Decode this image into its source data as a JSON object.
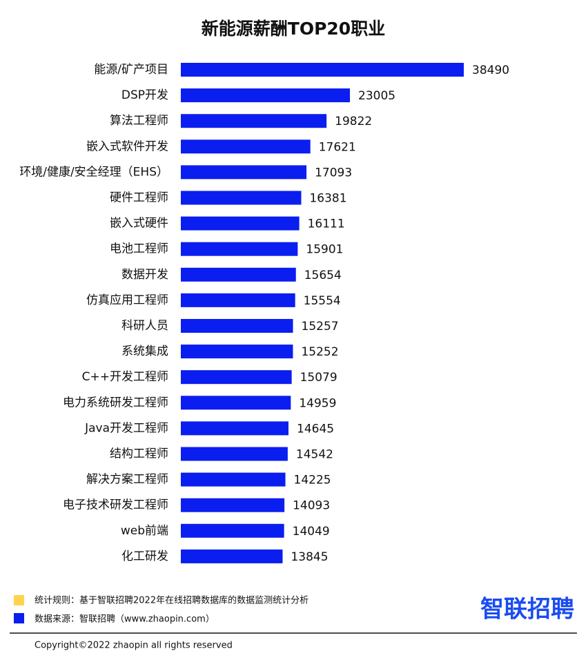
{
  "chart_data": {
    "type": "hbar",
    "title": "新能源薪酬TOP20职业",
    "categories": [
      "能源/矿产项目",
      "DSP开发",
      "算法工程师",
      "嵌入式软件开发",
      "环境/健康/安全经理（EHS）",
      "硬件工程师",
      "嵌入式硬件",
      "电池工程师",
      "数据开发",
      "仿真应用工程师",
      "科研人员",
      "系统集成",
      "C++开发工程师",
      "电力系统研发工程师",
      "Java开发工程师",
      "结构工程师",
      "解决方案工程师",
      "电子技术研发工程师",
      "web前端",
      "化工研发"
    ],
    "values": [
      38490,
      23005,
      19822,
      17621,
      17093,
      16381,
      16111,
      15901,
      15654,
      15554,
      15257,
      15252,
      15079,
      14959,
      14645,
      14542,
      14225,
      14093,
      14049,
      13845
    ],
    "color": "#0a1ef0"
  },
  "footer": {
    "rule": "统计规则：基于智联招聘2022年在线招聘数据库的数据监测统计分析",
    "source": "数据来源：智联招聘（www.zhaopin.com）",
    "logo": "智联招聘",
    "copyright": "Copyright©2022 zhaopin all rights reserved"
  }
}
